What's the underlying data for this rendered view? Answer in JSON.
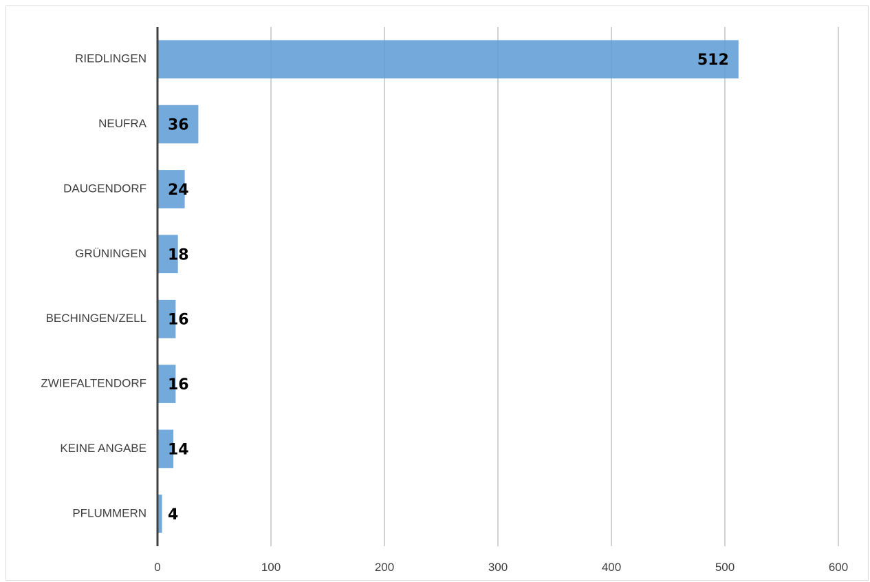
{
  "chart_data": {
    "type": "bar",
    "orientation": "horizontal",
    "categories": [
      "RIEDLINGEN",
      "NEUFRA",
      "DAUGENDORF",
      "GRÜNINGEN",
      "BECHINGEN/ZELL",
      "ZWIEFALTENDORF",
      "KEINE ANGABE",
      "PFLUMMERN"
    ],
    "values": [
      512,
      36,
      24,
      18,
      16,
      16,
      14,
      4
    ],
    "data_labels": [
      "512",
      "36",
      "24",
      "18",
      "16",
      "16",
      "14",
      "4"
    ],
    "x_ticks": [
      0,
      100,
      200,
      300,
      400,
      500,
      600
    ],
    "x_tick_labels": [
      "0",
      "100",
      "200",
      "300",
      "400",
      "500",
      "600"
    ],
    "xlim": [
      0,
      600
    ],
    "title": "",
    "xlabel": "",
    "ylabel": "",
    "grid": "vertical",
    "legend": "none",
    "colors": {
      "bar": "#5b9bd5",
      "gridline": "#a6a6a6",
      "axis": "#404040",
      "label_text": "#404040",
      "data_label": "#000000"
    }
  }
}
